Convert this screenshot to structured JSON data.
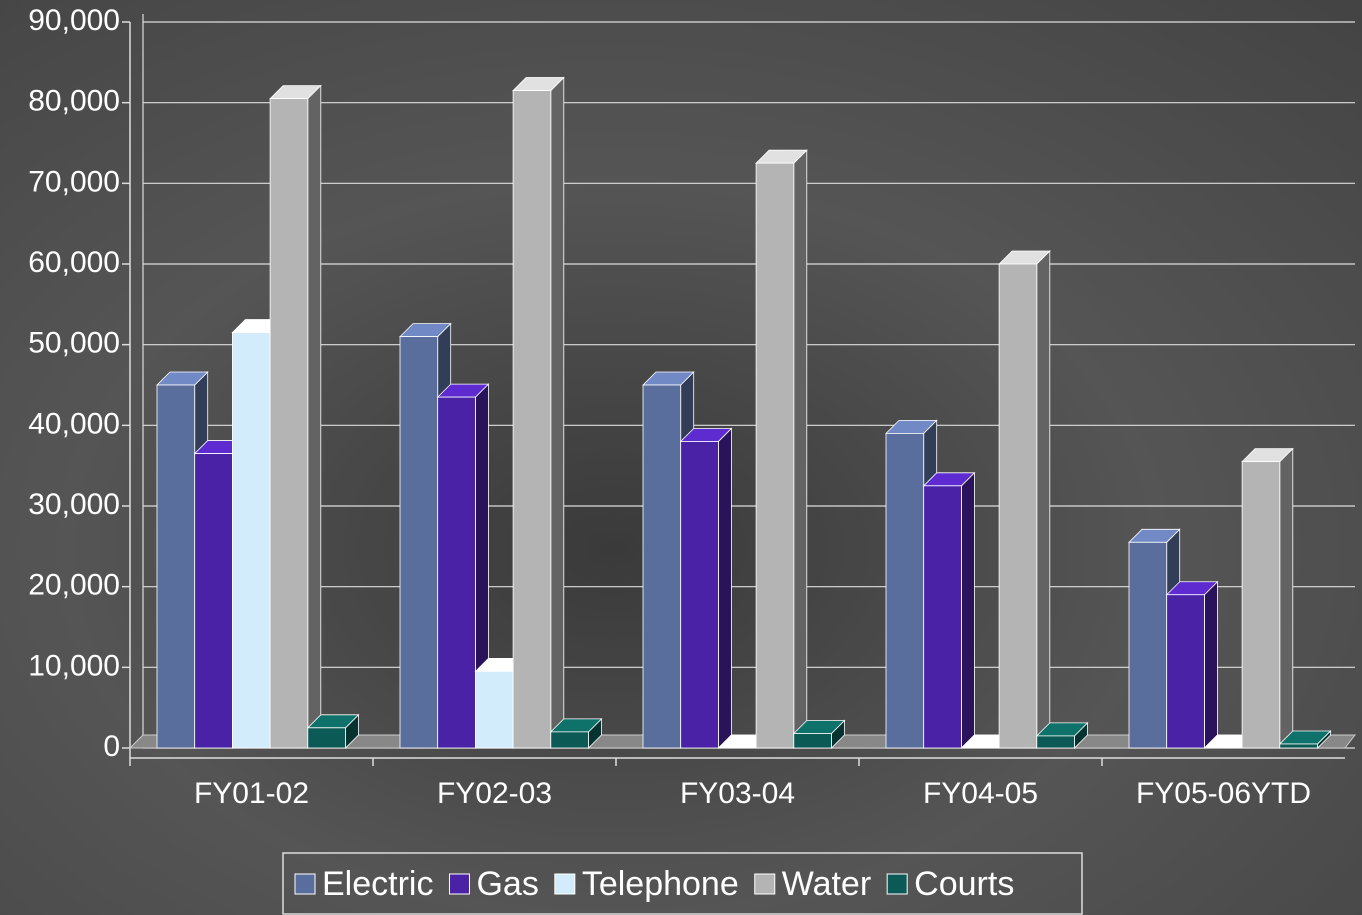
{
  "chart_data": {
    "type": "bar3d",
    "categories": [
      "FY01-02",
      "FY02-03",
      "FY03-04",
      "FY04-05",
      "FY05-06YTD"
    ],
    "series": [
      {
        "name": "Electric",
        "color": "#5a6e9e",
        "values": [
          45000,
          51000,
          45000,
          39000,
          25500
        ]
      },
      {
        "name": "Gas",
        "color": "#4a22a6",
        "values": [
          36500,
          43500,
          38000,
          32500,
          19000
        ]
      },
      {
        "name": "Telephone",
        "color": "#d2ecfc",
        "values": [
          51500,
          9500,
          0,
          0,
          0
        ]
      },
      {
        "name": "Water",
        "color": "#b4b4b4",
        "values": [
          80500,
          81500,
          72500,
          60000,
          35500
        ]
      },
      {
        "name": "Courts",
        "color": "#0b5a55",
        "values": [
          2500,
          2000,
          1800,
          1500,
          500
        ]
      }
    ],
    "ylim": [
      0,
      90000
    ],
    "yticks": [
      0,
      {
        "value": 10000,
        "label": "10,000"
      },
      {
        "value": 20000,
        "label": "20,000"
      },
      {
        "value": 30000,
        "label": "30,000"
      },
      {
        "value": 40000,
        "label": "40,000"
      },
      {
        "value": 50000,
        "label": "50,000"
      },
      {
        "value": 60000,
        "label": "60,000"
      },
      {
        "value": 70000,
        "label": "70,000"
      },
      {
        "value": 80000,
        "label": "80,000"
      },
      {
        "value": 90000,
        "label": "90,000"
      }
    ],
    "grid": true,
    "legend": "bottom"
  }
}
